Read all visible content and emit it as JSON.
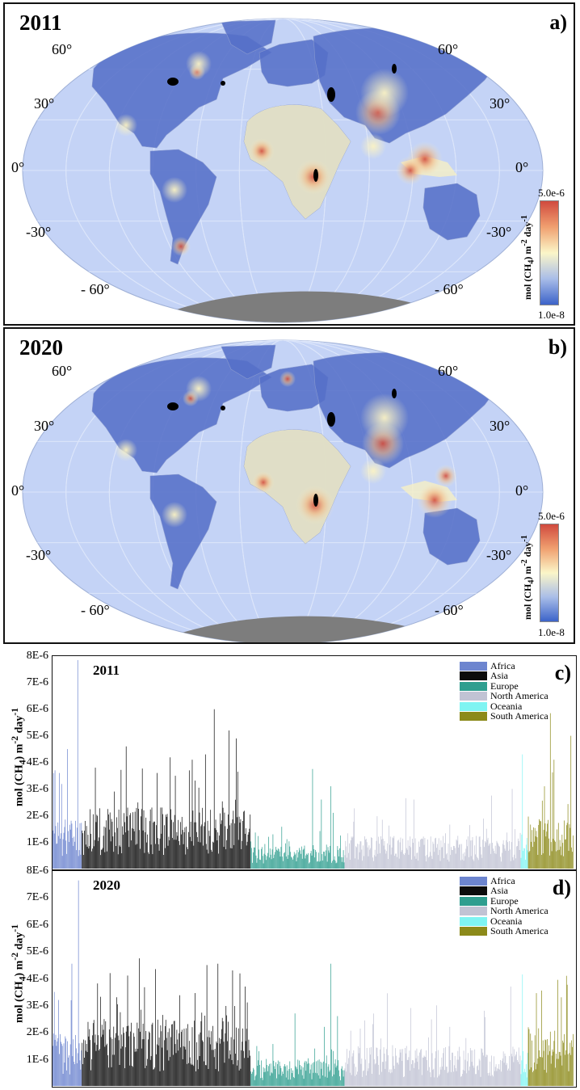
{
  "colors": {
    "ocean": "#c4d3f6",
    "land_low": "#5570c8",
    "land_mid": "#f6f0c6",
    "land_high": "#d24c3c",
    "antarctica": "#7d7d7d",
    "Africa": "#6d85cf",
    "Asia": "#0c0c0c",
    "Europe": "#2f9e8f",
    "North America": "#c1c3d4",
    "Oceania": "#7ff4f2",
    "South America": "#8c8a1a"
  },
  "maps": [
    {
      "year": "2011",
      "panel_label": "a)",
      "lat_left": [
        "60°",
        "30°",
        "0°",
        "-30°",
        "- 60°"
      ],
      "lat_right": [
        "60°",
        "30°",
        "0°",
        "-30°",
        "- 60°"
      ],
      "colorbar_max": "5.0e-6",
      "colorbar_min": "1.0e-8",
      "colorbar_unit": "mol (CH4) m-2 day-1"
    },
    {
      "year": "2020",
      "panel_label": "b)",
      "lat_left": [
        "60°",
        "30°",
        "0°",
        "-30°",
        "- 60°"
      ],
      "lat_right": [
        "60°",
        "30°",
        "0°",
        "-30°",
        "- 60°"
      ],
      "colorbar_max": "5.0e-6",
      "colorbar_min": "1.0e-8",
      "colorbar_unit": "mol (CH4) m-2 day-1"
    }
  ],
  "chart_data": [
    {
      "type": "bar",
      "panel_label": "c)",
      "year_label": "2011",
      "ylabel": "mol (CH4) m-2 day-1",
      "ylim": [
        0,
        8e-06
      ],
      "yticks": [
        "1E-6",
        "2E-6",
        "3E-6",
        "4E-6",
        "5E-6",
        "6E-6",
        "7E-6",
        "8E-6"
      ],
      "legend": [
        "Africa",
        "Asia",
        "Europe",
        "North America",
        "Oceania",
        "South America"
      ],
      "series": [
        {
          "name": "Africa",
          "count": 40,
          "mean": 1.2e-06,
          "peaks": [
            [
              1,
              3.6e-06
            ],
            [
              3,
              3.7e-06
            ],
            [
              9,
              3.6e-06
            ],
            [
              20,
              4.5e-06
            ],
            [
              34,
              7.85e-06
            ]
          ]
        },
        {
          "name": "Asia",
          "count": 230,
          "mean": 1.4e-06,
          "peaks": [
            [
              18,
              3.8e-06
            ],
            [
              60,
              4.6e-06
            ],
            [
              102,
              3.6e-06
            ],
            [
              150,
              4.1e-06
            ],
            [
              168,
              4.3e-06
            ],
            [
              180,
              6e-06
            ],
            [
              200,
              5.2e-06
            ],
            [
              210,
              4.9e-06
            ]
          ]
        },
        {
          "name": "Europe",
          "count": 128,
          "mean": 5.5e-07,
          "peaks": [
            [
              84,
              3.75e-06
            ],
            [
              96,
              2.6e-06
            ],
            [
              109,
              3.1e-06
            ],
            [
              112,
              2.1e-06
            ]
          ]
        },
        {
          "name": "North America",
          "count": 240,
          "mean": 7.5e-07,
          "peaks": [
            [
              83,
              2.65e-06
            ],
            [
              94,
              2.6e-06
            ],
            [
              200,
              2.75e-06
            ],
            [
              228,
              3e-06
            ]
          ]
        },
        {
          "name": "Oceania",
          "count": 10,
          "mean": 8e-07,
          "peaks": [
            [
              2,
              4.3e-06
            ]
          ]
        },
        {
          "name": "South America",
          "count": 62,
          "mean": 1.2e-06,
          "peaks": [
            [
              30,
              5.85e-06
            ],
            [
              58,
              5e-06
            ],
            [
              35,
              4.1e-06
            ],
            [
              22,
              3.1e-06
            ]
          ]
        }
      ]
    },
    {
      "type": "bar",
      "panel_label": "d)",
      "year_label": "2020",
      "ylabel": "mol (CH4) m-2 day-1",
      "ylim": [
        0,
        8e-06
      ],
      "yticks": [
        "1E-6",
        "2E-6",
        "3E-6",
        "4E-6",
        "5E-6",
        "6E-6",
        "7E-6",
        "8E-6"
      ],
      "legend": [
        "Africa",
        "Asia",
        "Europe",
        "North America",
        "Oceania",
        "South America"
      ],
      "series": [
        {
          "name": "Africa",
          "count": 40,
          "mean": 1.2e-06,
          "peaks": [
            [
              2,
              3.5e-06
            ],
            [
              8,
              3.2e-06
            ],
            [
              26,
              4.55e-06
            ],
            [
              35,
              7.65e-06
            ]
          ]
        },
        {
          "name": "Asia",
          "count": 230,
          "mean": 1.5e-06,
          "peaks": [
            [
              38,
              4.2e-06
            ],
            [
              78,
              4.75e-06
            ],
            [
              100,
              4.35e-06
            ],
            [
              170,
              4.5e-06
            ],
            [
              185,
              4.55e-06
            ],
            [
              205,
              4.3e-06
            ],
            [
              222,
              3.7e-06
            ]
          ]
        },
        {
          "name": "Europe",
          "count": 128,
          "mean": 6e-07,
          "peaks": [
            [
              60,
              2.7e-06
            ],
            [
              100,
              2.2e-06
            ],
            [
              109,
              4.55e-06
            ],
            [
              118,
              2.6e-06
            ]
          ]
        },
        {
          "name": "North America",
          "count": 240,
          "mean": 9e-07,
          "peaks": [
            [
              58,
              3.45e-06
            ],
            [
              90,
              2.9e-06
            ],
            [
              125,
              3e-06
            ],
            [
              190,
              2.8e-06
            ],
            [
              226,
              3.7e-06
            ]
          ]
        },
        {
          "name": "Oceania",
          "count": 10,
          "mean": 8e-07,
          "peaks": [
            [
              2,
              4.15e-06
            ]
          ]
        },
        {
          "name": "South America",
          "count": 62,
          "mean": 1.3e-06,
          "peaks": [
            [
              18,
              3.55e-06
            ],
            [
              40,
              3.95e-06
            ],
            [
              52,
              4.1e-06
            ],
            [
              45,
              3.3e-06
            ]
          ]
        }
      ]
    }
  ]
}
